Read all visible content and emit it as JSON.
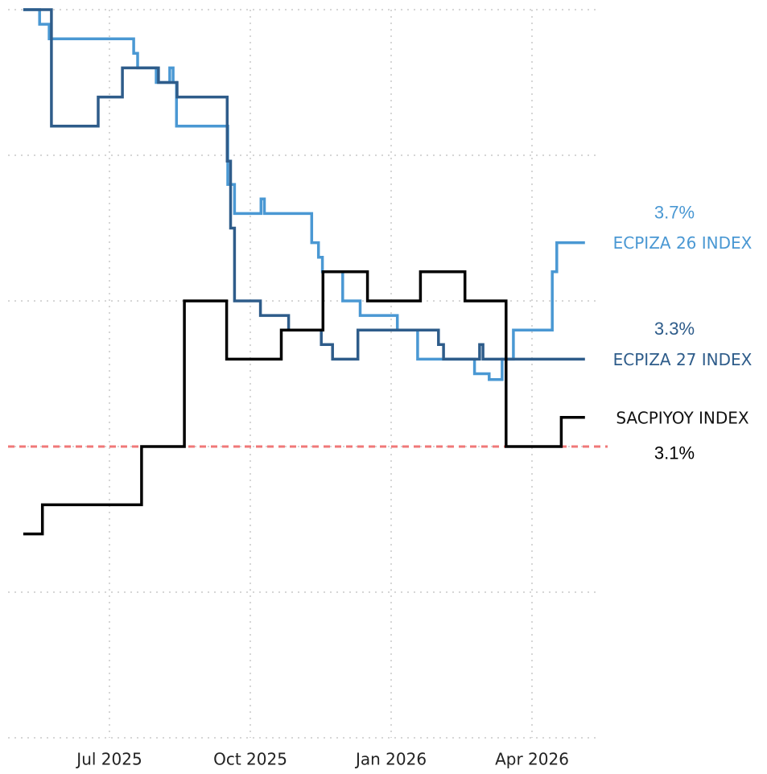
{
  "chart_data": {
    "type": "line",
    "step": "post",
    "xlim": [
      2025.32,
      2026.37
    ],
    "ylim": [
      2.0,
      4.5
    ],
    "xticks": [
      {
        "value": 2025.5,
        "label": "Jul 2025"
      },
      {
        "value": 2025.75,
        "label": "Oct 2025"
      },
      {
        "value": 2026.0,
        "label": "Jan 2026"
      },
      {
        "value": 2026.25,
        "label": "Apr 2026"
      }
    ],
    "yticks": [
      2.0,
      2.5,
      3.0,
      3.5,
      4.0,
      4.5
    ],
    "grid": true,
    "reference_line": {
      "value": 3.0,
      "color": "#f07878"
    },
    "series": [
      {
        "name": "ECPIZA 26 INDEX",
        "color": "#4a98d3",
        "value_label": "3.7%",
        "x": [
          2025.347,
          2025.376,
          2025.393,
          2025.543,
          2025.55,
          2025.583,
          2025.607,
          2025.613,
          2025.619,
          2025.71,
          2025.722,
          2025.769,
          2025.775,
          2025.859,
          2025.871,
          2025.878,
          2025.914,
          2025.945,
          2026.011,
          2026.047,
          2026.148,
          2026.174,
          2026.197,
          2026.217,
          2026.286,
          2026.294,
          2026.344
        ],
        "values": [
          4.5,
          4.45,
          4.4,
          4.35,
          4.3,
          4.25,
          4.3,
          4.25,
          4.1,
          3.9,
          3.8,
          3.85,
          3.8,
          3.7,
          3.65,
          3.6,
          3.5,
          3.45,
          3.4,
          3.3,
          3.25,
          3.23,
          3.3,
          3.4,
          3.6,
          3.7,
          3.7
        ]
      },
      {
        "name": "ECPIZA 27 INDEX",
        "color": "#2e5c8a",
        "value_label": "3.3%",
        "x": [
          2025.347,
          2025.397,
          2025.48,
          2025.523,
          2025.587,
          2025.62,
          2025.709,
          2025.715,
          2025.722,
          2025.768,
          2025.818,
          2025.876,
          2025.896,
          2025.941,
          2026.084,
          2026.093,
          2026.157,
          2026.163,
          2026.344
        ],
        "values": [
          4.5,
          4.1,
          4.2,
          4.3,
          4.25,
          4.2,
          3.98,
          3.75,
          3.5,
          3.45,
          3.4,
          3.35,
          3.3,
          3.4,
          3.35,
          3.3,
          3.35,
          3.3,
          3.3
        ]
      },
      {
        "name": "SACPIYOY INDEX",
        "color": "#000000",
        "value_label": "3.1%",
        "x": [
          2025.347,
          2025.381,
          2025.557,
          2025.633,
          2025.708,
          2025.805,
          2025.879,
          2025.958,
          2026.052,
          2026.131,
          2026.204,
          2026.302,
          2026.344
        ],
        "values": [
          2.7,
          2.8,
          3.0,
          3.5,
          3.3,
          3.4,
          3.6,
          3.5,
          3.6,
          3.5,
          3.0,
          3.1,
          3.1
        ]
      }
    ]
  }
}
